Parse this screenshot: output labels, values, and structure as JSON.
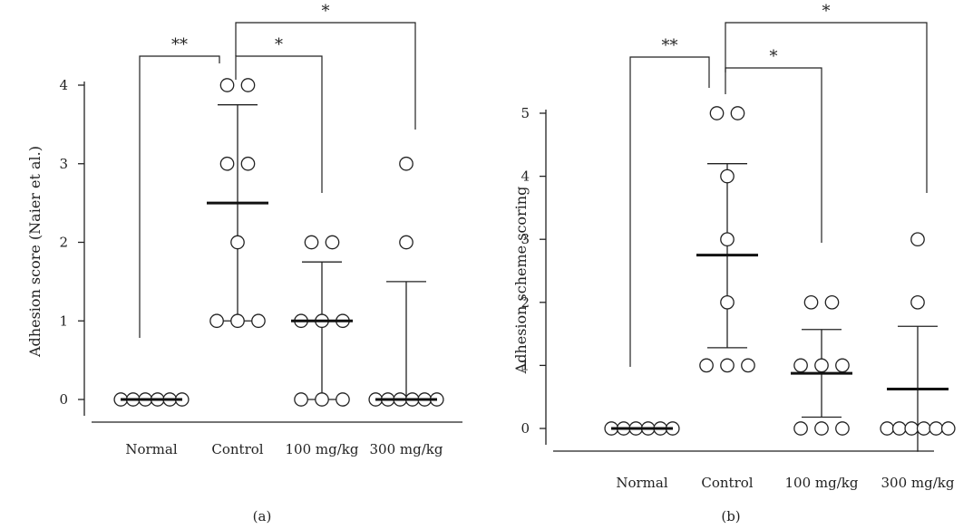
{
  "chart_data": [
    {
      "type": "scatter",
      "panel_label": "(a)",
      "ylabel": "Adhesion score (Naier et al.)",
      "xlabel": "",
      "categories": [
        "Normal",
        "Control",
        "100 mg/kg",
        "300 mg/kg"
      ],
      "ylim": [
        0,
        4
      ],
      "yticks": [
        "0",
        "1",
        "2",
        "3",
        "4"
      ],
      "grid": false,
      "points": [
        [
          0,
          0,
          0,
          0,
          0,
          0
        ],
        [
          4,
          4,
          3,
          3,
          2,
          1,
          1,
          1
        ],
        [
          2,
          2,
          1,
          1,
          1,
          0,
          0,
          0
        ],
        [
          3,
          2,
          0,
          0,
          0,
          0,
          0,
          0
        ]
      ],
      "mean": [
        0,
        2.5,
        1.0,
        0
      ],
      "error_upper": [
        0,
        3.75,
        1.75,
        1.5
      ],
      "error_lower": [
        0,
        1.0,
        0,
        0
      ],
      "comparisons": [
        {
          "groups": [
            "Normal",
            "Control"
          ],
          "label": "**"
        },
        {
          "groups": [
            "Control",
            "100 mg/kg"
          ],
          "label": "*"
        },
        {
          "groups": [
            "Control",
            "300 mg/kg"
          ],
          "label": "*"
        }
      ]
    },
    {
      "type": "scatter",
      "panel_label": "(b)",
      "ylabel": "Adhesion scheme scoring",
      "xlabel": "",
      "categories": [
        "Normal",
        "Control",
        "100 mg/kg",
        "300 mg/kg"
      ],
      "ylim": [
        0,
        5
      ],
      "yticks": [
        "0",
        "1",
        "2",
        "3",
        "4",
        "5"
      ],
      "grid": false,
      "points": [
        [
          0,
          0,
          0,
          0,
          0,
          0
        ],
        [
          5,
          5,
          4,
          3,
          2,
          1,
          1,
          1
        ],
        [
          2,
          2,
          1,
          1,
          1,
          0,
          0,
          0
        ],
        [
          3,
          2,
          0,
          0,
          0,
          0,
          0,
          0
        ]
      ],
      "mean": [
        0,
        2.75,
        0.875,
        0.625
      ],
      "error_upper": [
        0,
        4.2,
        1.57,
        1.62
      ],
      "error_lower": [
        0,
        1.28,
        0.18,
        -0.37
      ],
      "comparisons": [
        {
          "groups": [
            "Normal",
            "Control"
          ],
          "label": "**"
        },
        {
          "groups": [
            "Control",
            "100 mg/kg"
          ],
          "label": "*"
        },
        {
          "groups": [
            "Control",
            "300 mg/kg"
          ],
          "label": "*"
        }
      ]
    }
  ]
}
